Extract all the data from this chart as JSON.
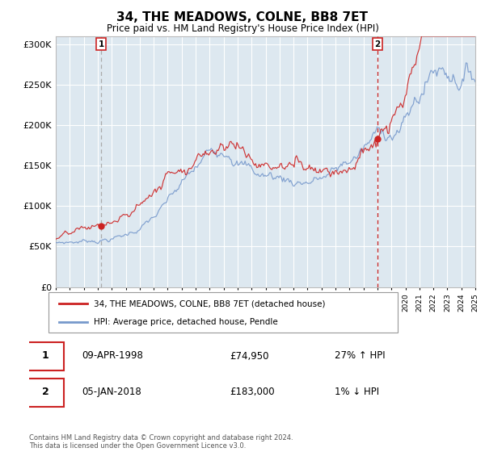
{
  "title": "34, THE MEADOWS, COLNE, BB8 7ET",
  "subtitle": "Price paid vs. HM Land Registry's House Price Index (HPI)",
  "sale1_date": "09-APR-1998",
  "sale1_price": 74950,
  "sale1_label": "£74,950",
  "sale1_hpi": "27% ↑ HPI",
  "sale2_date": "05-JAN-2018",
  "sale2_price": 183000,
  "sale2_label": "£183,000",
  "sale2_hpi": "1% ↓ HPI",
  "legend_line1": "34, THE MEADOWS, COLNE, BB8 7ET (detached house)",
  "legend_line2": "HPI: Average price, detached house, Pendle",
  "footer": "Contains HM Land Registry data © Crown copyright and database right 2024.\nThis data is licensed under the Open Government Licence v3.0.",
  "red_color": "#cc2222",
  "blue_color": "#7799cc",
  "bg_color": "#dde8f0",
  "ylim": [
    0,
    310000
  ],
  "yticks": [
    0,
    50000,
    100000,
    150000,
    200000,
    250000,
    300000
  ],
  "ytick_labels": [
    "£0",
    "£50K",
    "£100K",
    "£150K",
    "£200K",
    "£250K",
    "£300K"
  ],
  "start_year": 1995,
  "end_year": 2025,
  "sale1_year": 1998.25,
  "sale2_year": 2018.0
}
